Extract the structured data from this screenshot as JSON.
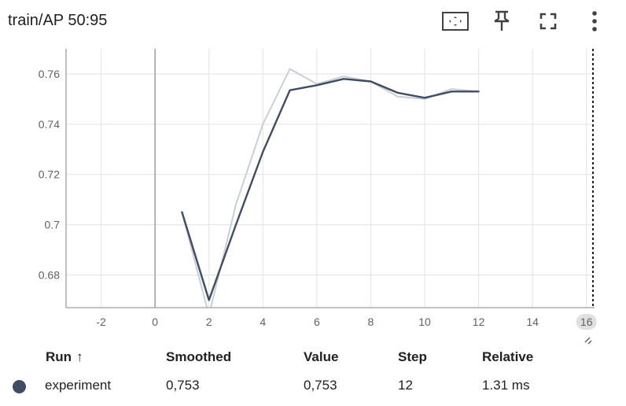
{
  "title": "train/AP 50:95",
  "toolbar": {
    "icons": [
      "fit-domain-icon",
      "pin-icon",
      "fullscreen-icon",
      "more-vert-icon"
    ]
  },
  "chart_data": {
    "type": "line",
    "x_ticks": [
      "-2",
      "0",
      "2",
      "4",
      "6",
      "8",
      "10",
      "12",
      "14",
      "16"
    ],
    "y_ticks": [
      "0.68",
      "0.7",
      "0.72",
      "0.74",
      "0.76"
    ],
    "xlim": [
      -3.3,
      16.3
    ],
    "ylim": [
      0.667,
      0.77
    ],
    "highlighted_x_tick": "16",
    "grid": true,
    "series": [
      {
        "name": "experiment",
        "role": "raw",
        "color": "#c9cfd6",
        "x": [
          1,
          2,
          3,
          4,
          5,
          6,
          7,
          8,
          9,
          10,
          11,
          12
        ],
        "y": [
          0.705,
          0.664,
          0.708,
          0.74,
          0.762,
          0.756,
          0.759,
          0.757,
          0.751,
          0.75,
          0.754,
          0.753
        ]
      },
      {
        "name": "experiment",
        "role": "smoothed",
        "color": "#3f4c63",
        "x": [
          1,
          2,
          3,
          4,
          5,
          6,
          7,
          8,
          9,
          10,
          11,
          12
        ],
        "y": [
          0.705,
          0.67,
          0.7,
          0.729,
          0.7535,
          0.7555,
          0.758,
          0.757,
          0.7525,
          0.7505,
          0.753,
          0.753
        ]
      }
    ]
  },
  "table": {
    "headers": {
      "run": "Run",
      "run_sort": "↑",
      "smoothed": "Smoothed",
      "value": "Value",
      "step": "Step",
      "relative": "Relative"
    },
    "rows": [
      {
        "color": "#3f4c63",
        "run": "experiment",
        "smoothed": "0,753",
        "value": "0,753",
        "step": "12",
        "relative": "1.31 ms"
      }
    ]
  }
}
